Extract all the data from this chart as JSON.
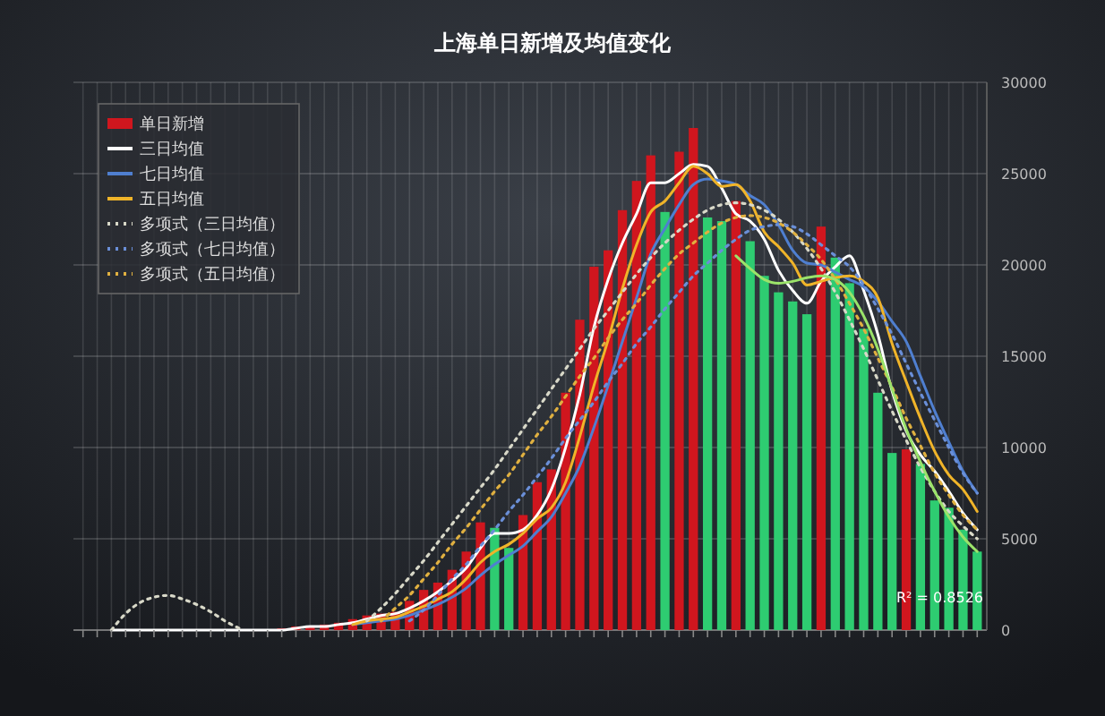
{
  "chart_data": {
    "type": "bar",
    "title": "上海单日新增及均值变化",
    "categories": [
      null,
      null,
      null,
      null,
      null,
      null,
      null,
      null,
      null,
      null,
      null,
      null,
      null,
      null,
      null,
      null,
      null,
      null,
      null,
      null,
      null,
      null,
      null,
      null,
      null,
      null,
      null,
      null,
      null,
      null,
      null,
      null,
      null,
      null,
      null,
      null,
      null,
      null,
      null,
      null,
      null,
      null,
      null,
      null,
      null,
      null,
      null,
      null,
      null,
      null,
      null,
      null,
      null,
      null,
      null,
      null,
      null,
      null,
      null,
      null,
      null,
      null,
      null,
      null
    ],
    "series": [
      {
        "name": "单日新增",
        "type": "bar",
        "color": "#d0161e",
        "values": [
          0,
          0,
          0,
          0,
          0,
          0,
          0,
          0,
          0,
          0,
          0,
          0,
          0,
          0,
          100,
          200,
          200,
          300,
          400,
          600,
          800,
          900,
          1000,
          1600,
          2200,
          2600,
          3300,
          4300,
          5900,
          5600,
          4500,
          6300,
          8100,
          8800,
          13000,
          17000,
          19900,
          20800,
          23000,
          24600,
          26000,
          22900,
          26200,
          27500,
          22600,
          22400,
          23500,
          21300,
          19400,
          18500,
          18000,
          17300,
          22100,
          20400,
          19000,
          16500,
          13000,
          9700,
          9900,
          9100,
          7100,
          6700,
          5500,
          4300
        ],
        "colors": [
          "#d0161e",
          "#d0161e",
          "#d0161e",
          "#d0161e",
          "#d0161e",
          "#d0161e",
          "#d0161e",
          "#d0161e",
          "#d0161e",
          "#d0161e",
          "#d0161e",
          "#d0161e",
          "#d0161e",
          "#d0161e",
          "#d0161e",
          "#d0161e",
          "#d0161e",
          "#d0161e",
          "#d0161e",
          "#d0161e",
          "#d0161e",
          "#d0161e",
          "#d0161e",
          "#d0161e",
          "#d0161e",
          "#d0161e",
          "#d0161e",
          "#d0161e",
          "#d0161e",
          "#2ecc71",
          "#2ecc71",
          "#d0161e",
          "#d0161e",
          "#d0161e",
          "#d0161e",
          "#d0161e",
          "#d0161e",
          "#d0161e",
          "#d0161e",
          "#d0161e",
          "#d0161e",
          "#2ecc71",
          "#d0161e",
          "#d0161e",
          "#2ecc71",
          "#2ecc71",
          "#d0161e",
          "#2ecc71",
          "#2ecc71",
          "#2ecc71",
          "#2ecc71",
          "#2ecc71",
          "#d0161e",
          "#2ecc71",
          "#2ecc71",
          "#2ecc71",
          "#2ecc71",
          "#2ecc71",
          "#d0161e",
          "#2ecc71",
          "#2ecc71",
          "#2ecc71",
          "#2ecc71",
          "#2ecc71"
        ]
      },
      {
        "name": "三日均值",
        "type": "line",
        "color": "#ffffff",
        "line_style": "solid",
        "values": [
          null,
          null,
          0,
          0,
          0,
          0,
          0,
          0,
          0,
          0,
          0,
          0,
          0,
          0,
          0,
          100,
          200,
          200,
          300,
          400,
          600,
          800,
          900,
          1200,
          1600,
          2100,
          2700,
          3400,
          4500,
          5300,
          5300,
          5500,
          6300,
          7700,
          10000,
          12900,
          16600,
          19200,
          21200,
          22800,
          24500,
          24500,
          25000,
          25500,
          25400,
          24200,
          22800,
          22400,
          21400,
          19700,
          18600,
          17900,
          19100,
          19900,
          20500,
          18600,
          16200,
          13100,
          10900,
          9600,
          8700,
          7600,
          6400,
          5500
        ]
      },
      {
        "name": "七日均值",
        "type": "line",
        "color": "#4f7fd0",
        "line_style": "solid",
        "values": [
          null,
          null,
          null,
          null,
          null,
          null,
          null,
          null,
          null,
          null,
          null,
          null,
          null,
          null,
          null,
          null,
          null,
          null,
          null,
          300,
          400,
          500,
          600,
          800,
          1100,
          1400,
          1800,
          2300,
          3000,
          3600,
          4100,
          4600,
          5400,
          6200,
          7500,
          9000,
          11100,
          13400,
          15800,
          18200,
          20600,
          22000,
          23300,
          24400,
          24700,
          24600,
          24400,
          23800,
          23300,
          22200,
          20800,
          20100,
          20000,
          19600,
          19200,
          18800,
          18000,
          16900,
          15800,
          13900,
          12000,
          10300,
          8700,
          7500
        ]
      },
      {
        "name": "五日均值",
        "type": "line",
        "color": "#f0b429",
        "line_style": "solid",
        "values": [
          null,
          null,
          null,
          null,
          null,
          null,
          null,
          null,
          null,
          null,
          null,
          null,
          null,
          null,
          null,
          null,
          null,
          null,
          null,
          300,
          500,
          600,
          700,
          1000,
          1300,
          1700,
          2100,
          2800,
          3700,
          4300,
          4700,
          5300,
          6100,
          6700,
          8100,
          10600,
          13400,
          15900,
          18700,
          21100,
          22900,
          23500,
          24500,
          25400,
          25000,
          24300,
          24400,
          23500,
          21800,
          21000,
          20100,
          18900,
          19100,
          19300,
          19400,
          19100,
          18200,
          15700,
          13600,
          11600,
          9800,
          8500,
          7700,
          6500
        ]
      },
      {
        "name": "多项式（三日均值）",
        "type": "line",
        "color": "#d8d8c8",
        "line_style": "dotted",
        "values": [
          null,
          null,
          0,
          900,
          1500,
          1800,
          1900,
          1700,
          1400,
          1000,
          500,
          100,
          null,
          null,
          null,
          null,
          null,
          null,
          null,
          null,
          500,
          1200,
          2000,
          2900,
          3800,
          4800,
          5800,
          6800,
          7800,
          8800,
          9900,
          11000,
          12100,
          13200,
          14300,
          15400,
          16500,
          17500,
          18500,
          19500,
          20400,
          21200,
          21900,
          22500,
          23000,
          23300,
          23400,
          23300,
          23000,
          22500,
          21800,
          20900,
          19800,
          18500,
          17000,
          15400,
          13700,
          12000,
          10400,
          8900,
          7600,
          6500,
          5700,
          5000
        ]
      },
      {
        "name": "多项式（七日均值）",
        "type": "line",
        "color": "#6a8fd8",
        "line_style": "dotted",
        "values": [
          null,
          null,
          null,
          null,
          null,
          null,
          null,
          null,
          null,
          null,
          null,
          null,
          null,
          null,
          null,
          null,
          null,
          null,
          null,
          null,
          null,
          null,
          null,
          500,
          1100,
          1900,
          2800,
          3600,
          4600,
          5500,
          6500,
          7400,
          8400,
          9400,
          10500,
          11500,
          12500,
          13600,
          14600,
          15700,
          16600,
          17600,
          18500,
          19400,
          20100,
          20800,
          21400,
          21900,
          22100,
          22200,
          22100,
          21700,
          21100,
          20500,
          19900,
          18900,
          17600,
          16200,
          14600,
          13000,
          11500,
          10000,
          8600,
          7500
        ]
      },
      {
        "name": "多项式（五日均值）",
        "type": "line",
        "color": "#e0b040",
        "line_style": "dotted",
        "values": [
          null,
          null,
          null,
          null,
          null,
          null,
          null,
          null,
          null,
          null,
          null,
          null,
          null,
          null,
          null,
          null,
          null,
          null,
          null,
          null,
          null,
          500,
          1200,
          1900,
          2800,
          3700,
          4700,
          5600,
          6600,
          7600,
          8500,
          9600,
          10700,
          11700,
          12800,
          13900,
          14900,
          16000,
          17000,
          17900,
          18900,
          19800,
          20600,
          21200,
          21800,
          22300,
          22600,
          22700,
          22600,
          22300,
          21800,
          21100,
          20300,
          19200,
          17900,
          16500,
          14900,
          13300,
          11600,
          10100,
          8600,
          7400,
          6300,
          5500
        ]
      },
      {
        "type": "line",
        "color": "#9be36a",
        "line_style": "solid",
        "values": [
          null,
          null,
          null,
          null,
          null,
          null,
          null,
          null,
          null,
          null,
          null,
          null,
          null,
          null,
          null,
          null,
          null,
          null,
          null,
          null,
          null,
          null,
          null,
          null,
          null,
          null,
          null,
          null,
          null,
          null,
          null,
          null,
          null,
          null,
          null,
          null,
          null,
          null,
          null,
          null,
          null,
          null,
          null,
          null,
          null,
          null,
          20500,
          19800,
          19200,
          19000,
          19100,
          19300,
          19400,
          19200,
          18500,
          17200,
          15400,
          13200,
          11000,
          9200,
          7600,
          6200,
          5100,
          4300
        ]
      }
    ],
    "ylim": [
      0,
      30000
    ],
    "yticks": [
      0,
      5000,
      10000,
      15000,
      20000,
      25000,
      30000
    ],
    "grid": true,
    "legend": "top left",
    "marker": "none",
    "annotations": [
      "R² = 0.8526"
    ]
  }
}
